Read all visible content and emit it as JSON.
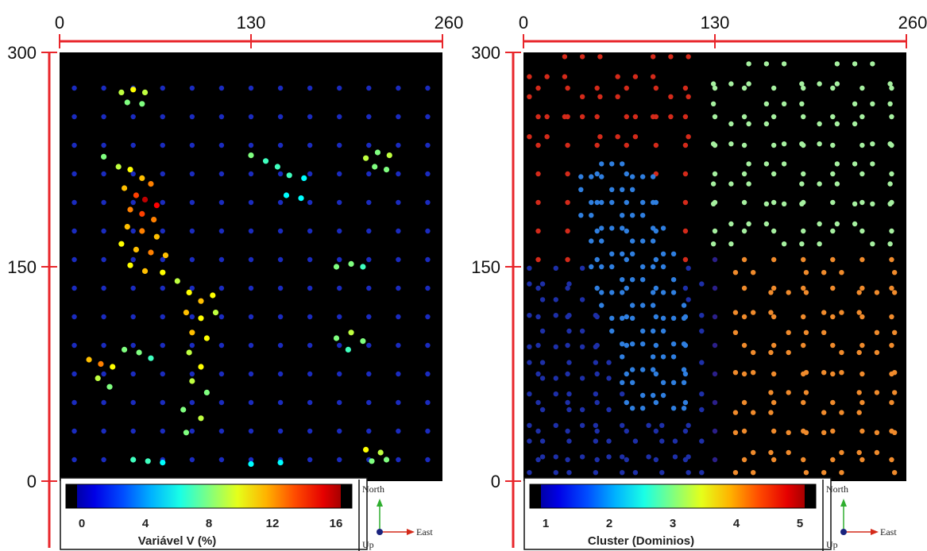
{
  "chart_data": [
    {
      "type": "scatter",
      "title": "",
      "xlim": [
        0,
        260
      ],
      "ylim": [
        0,
        300
      ],
      "x_ticks": [
        "0",
        "130",
        "260"
      ],
      "y_ticks": [
        "0",
        "150",
        "300"
      ],
      "colorbar": {
        "label": "Variável V (%)",
        "ticks": [
          "0",
          "4",
          "8",
          "12",
          "16"
        ],
        "range": [
          0,
          16
        ]
      },
      "compass": {
        "north": "North",
        "east": "East",
        "up": "Up"
      },
      "background": "#000000",
      "axis_color": "#e8262b",
      "points": [
        {
          "x": 42,
          "y": 272,
          "v": 9
        },
        {
          "x": 50,
          "y": 274,
          "v": 10
        },
        {
          "x": 58,
          "y": 272,
          "v": 9
        },
        {
          "x": 46,
          "y": 265,
          "v": 8
        },
        {
          "x": 56,
          "y": 264,
          "v": 8
        },
        {
          "x": 30,
          "y": 227,
          "v": 8
        },
        {
          "x": 40,
          "y": 220,
          "v": 9
        },
        {
          "x": 48,
          "y": 218,
          "v": 10
        },
        {
          "x": 56,
          "y": 212,
          "v": 11
        },
        {
          "x": 62,
          "y": 208,
          "v": 12
        },
        {
          "x": 44,
          "y": 205,
          "v": 11
        },
        {
          "x": 52,
          "y": 200,
          "v": 13
        },
        {
          "x": 58,
          "y": 197,
          "v": 15
        },
        {
          "x": 66,
          "y": 193,
          "v": 14
        },
        {
          "x": 48,
          "y": 190,
          "v": 12
        },
        {
          "x": 56,
          "y": 187,
          "v": 13
        },
        {
          "x": 64,
          "y": 183,
          "v": 12
        },
        {
          "x": 46,
          "y": 178,
          "v": 11
        },
        {
          "x": 56,
          "y": 175,
          "v": 12
        },
        {
          "x": 66,
          "y": 171,
          "v": 11
        },
        {
          "x": 42,
          "y": 166,
          "v": 10
        },
        {
          "x": 52,
          "y": 162,
          "v": 11
        },
        {
          "x": 62,
          "y": 160,
          "v": 12
        },
        {
          "x": 72,
          "y": 158,
          "v": 11
        },
        {
          "x": 48,
          "y": 151,
          "v": 10
        },
        {
          "x": 58,
          "y": 147,
          "v": 11
        },
        {
          "x": 70,
          "y": 146,
          "v": 10
        },
        {
          "x": 80,
          "y": 140,
          "v": 9
        },
        {
          "x": 88,
          "y": 132,
          "v": 10
        },
        {
          "x": 96,
          "y": 126,
          "v": 11
        },
        {
          "x": 104,
          "y": 130,
          "v": 10
        },
        {
          "x": 86,
          "y": 118,
          "v": 11
        },
        {
          "x": 96,
          "y": 114,
          "v": 10
        },
        {
          "x": 106,
          "y": 118,
          "v": 9
        },
        {
          "x": 90,
          "y": 104,
          "v": 11
        },
        {
          "x": 100,
          "y": 100,
          "v": 10
        },
        {
          "x": 88,
          "y": 90,
          "v": 9
        },
        {
          "x": 96,
          "y": 80,
          "v": 10
        },
        {
          "x": 90,
          "y": 70,
          "v": 9
        },
        {
          "x": 100,
          "y": 62,
          "v": 8
        },
        {
          "x": 84,
          "y": 50,
          "v": 8
        },
        {
          "x": 96,
          "y": 44,
          "v": 9
        },
        {
          "x": 86,
          "y": 34,
          "v": 8
        },
        {
          "x": 20,
          "y": 85,
          "v": 11
        },
        {
          "x": 28,
          "y": 82,
          "v": 12
        },
        {
          "x": 36,
          "y": 80,
          "v": 10
        },
        {
          "x": 26,
          "y": 72,
          "v": 9
        },
        {
          "x": 34,
          "y": 66,
          "v": 8
        },
        {
          "x": 44,
          "y": 92,
          "v": 8
        },
        {
          "x": 54,
          "y": 90,
          "v": 8
        },
        {
          "x": 62,
          "y": 86,
          "v": 7
        },
        {
          "x": 130,
          "y": 228,
          "v": 8
        },
        {
          "x": 140,
          "y": 224,
          "v": 7
        },
        {
          "x": 148,
          "y": 220,
          "v": 7
        },
        {
          "x": 156,
          "y": 214,
          "v": 7
        },
        {
          "x": 166,
          "y": 212,
          "v": 6
        },
        {
          "x": 154,
          "y": 200,
          "v": 6
        },
        {
          "x": 164,
          "y": 198,
          "v": 6
        },
        {
          "x": 208,
          "y": 226,
          "v": 9
        },
        {
          "x": 216,
          "y": 230,
          "v": 8
        },
        {
          "x": 224,
          "y": 228,
          "v": 9
        },
        {
          "x": 214,
          "y": 220,
          "v": 8
        },
        {
          "x": 222,
          "y": 218,
          "v": 8
        },
        {
          "x": 188,
          "y": 150,
          "v": 8
        },
        {
          "x": 198,
          "y": 152,
          "v": 8
        },
        {
          "x": 206,
          "y": 150,
          "v": 7
        },
        {
          "x": 188,
          "y": 100,
          "v": 8
        },
        {
          "x": 198,
          "y": 104,
          "v": 9
        },
        {
          "x": 206,
          "y": 98,
          "v": 8
        },
        {
          "x": 196,
          "y": 92,
          "v": 7
        },
        {
          "x": 208,
          "y": 22,
          "v": 10
        },
        {
          "x": 218,
          "y": 20,
          "v": 9
        },
        {
          "x": 212,
          "y": 14,
          "v": 8
        },
        {
          "x": 222,
          "y": 15,
          "v": 8
        },
        {
          "x": 50,
          "y": 15,
          "v": 7
        },
        {
          "x": 60,
          "y": 14,
          "v": 7
        },
        {
          "x": 70,
          "y": 13,
          "v": 6
        },
        {
          "x": 130,
          "y": 12,
          "v": 6
        },
        {
          "x": 150,
          "y": 13,
          "v": 6
        }
      ]
    },
    {
      "type": "scatter",
      "title": "",
      "xlim": [
        0,
        260
      ],
      "ylim": [
        0,
        300
      ],
      "x_ticks": [
        "0",
        "130",
        "260"
      ],
      "y_ticks": [
        "0",
        "150",
        "300"
      ],
      "colorbar": {
        "label": "Cluster (Dominios)",
        "ticks": [
          "1",
          "2",
          "3",
          "4",
          "5"
        ],
        "range": [
          1,
          5
        ]
      },
      "compass": {
        "north": "North",
        "east": "East",
        "up": "Up"
      },
      "background": "#000000",
      "axis_color": "#e8262b",
      "clusters": [
        {
          "cluster": 5,
          "color": "#d42a1a",
          "region": [
            0,
            115,
            235,
            300
          ]
        },
        {
          "cluster": 3,
          "color": "#a6f0a0",
          "region": [
            125,
            260,
            160,
            300
          ]
        },
        {
          "cluster": 4,
          "color": "#f08b2c",
          "region": [
            140,
            260,
            0,
            160
          ]
        },
        {
          "cluster": 2,
          "color": "#2f7fe0",
          "region": [
            35,
            115,
            45,
            230
          ]
        },
        {
          "cluster": 1,
          "color": "#1d2fa8",
          "region": [
            0,
            125,
            0,
            150
          ]
        }
      ]
    }
  ]
}
